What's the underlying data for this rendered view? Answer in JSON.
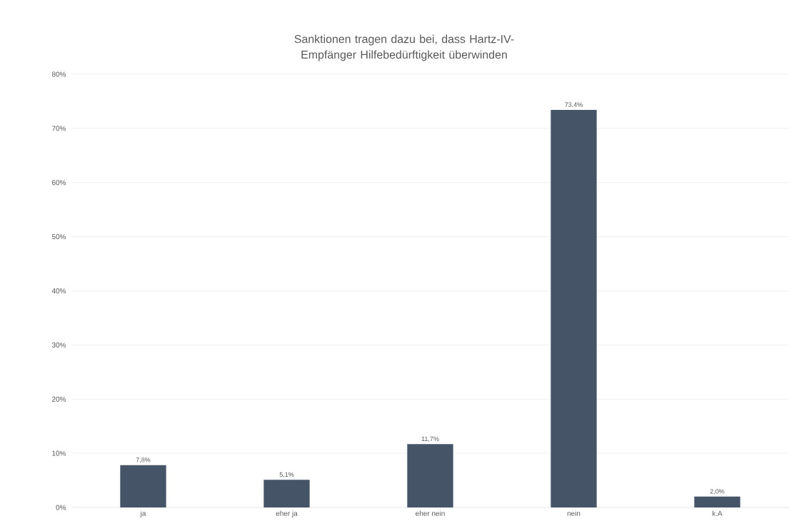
{
  "chart_data": {
    "type": "bar",
    "title": "Sanktionen tragen dazu bei, dass Hartz-IV-Empfänger Hilfebedürftigkeit überwinden",
    "categories": [
      "ja",
      "eher ja",
      "eher nein",
      "nein",
      "k.A"
    ],
    "values": [
      7.8,
      5.1,
      11.7,
      73.4,
      2.0
    ],
    "value_labels": [
      "7,8%",
      "5,1%",
      "11,7%",
      "73,4%",
      "2,0%"
    ],
    "color": "#465468",
    "ylim": [
      0,
      80
    ],
    "yticks": [
      {
        "value": 0,
        "label": "0%"
      },
      {
        "value": 10,
        "label": "10%"
      },
      {
        "value": 20,
        "label": "20%"
      },
      {
        "value": 30,
        "label": "30%"
      },
      {
        "value": 40,
        "label": "40%"
      },
      {
        "value": 50,
        "label": "50%"
      },
      {
        "value": 60,
        "label": "60%"
      },
      {
        "value": 70,
        "label": "70%"
      },
      {
        "value": 80,
        "label": "80%"
      }
    ],
    "grid": "y"
  }
}
